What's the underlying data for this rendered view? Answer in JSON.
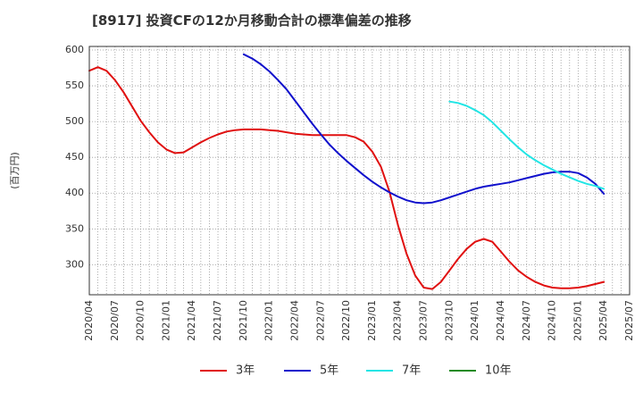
{
  "chart_data": {
    "type": "line",
    "title": "[8917]  投資CFの12か月移動合計の標準偏差の推移",
    "ylabel": "(百万円)",
    "ylim": [
      258,
      605
    ],
    "yticks": [
      300,
      350,
      400,
      450,
      500,
      550,
      600
    ],
    "x_start": "2020-04",
    "x_end": "2025-07",
    "xticks": [
      "2020/04",
      "2020/07",
      "2020/10",
      "2021/01",
      "2021/04",
      "2021/07",
      "2021/10",
      "2022/01",
      "2022/04",
      "2022/07",
      "2022/10",
      "2023/01",
      "2023/04",
      "2023/07",
      "2023/10",
      "2024/01",
      "2024/04",
      "2024/07",
      "2024/10",
      "2025/01",
      "2025/04",
      "2025/07"
    ],
    "grid": true,
    "legend_position": "bottom",
    "series": [
      {
        "name": "3年",
        "color": "#e01010",
        "x": [
          "2020-04",
          "2020-05",
          "2020-06",
          "2020-07",
          "2020-08",
          "2020-09",
          "2020-10",
          "2020-11",
          "2020-12",
          "2021-01",
          "2021-02",
          "2021-03",
          "2021-04",
          "2021-05",
          "2021-06",
          "2021-07",
          "2021-08",
          "2021-09",
          "2021-10",
          "2021-11",
          "2021-12",
          "2022-01",
          "2022-02",
          "2022-03",
          "2022-04",
          "2022-05",
          "2022-06",
          "2022-07",
          "2022-08",
          "2022-09",
          "2022-10",
          "2022-11",
          "2022-12",
          "2023-01",
          "2023-02",
          "2023-03",
          "2023-04",
          "2023-05",
          "2023-06",
          "2023-07",
          "2023-08",
          "2023-09",
          "2023-10",
          "2023-11",
          "2023-12",
          "2024-01",
          "2024-02",
          "2024-03",
          "2024-04",
          "2024-05",
          "2024-06",
          "2024-07",
          "2024-08",
          "2024-09",
          "2024-10",
          "2024-11",
          "2024-12",
          "2025-01",
          "2025-02",
          "2025-03",
          "2025-04"
        ],
        "values": [
          571,
          576,
          571,
          558,
          541,
          521,
          501,
          485,
          471,
          461,
          456,
          457,
          464,
          471,
          477,
          482,
          486,
          488,
          489,
          489,
          489,
          488,
          487,
          485,
          483,
          482,
          481,
          481,
          481,
          481,
          481,
          478,
          472,
          458,
          437,
          402,
          355,
          315,
          285,
          268,
          266,
          276,
          292,
          308,
          322,
          332,
          336,
          332,
          318,
          304,
          292,
          283,
          276,
          271,
          268,
          267,
          267,
          268,
          270,
          273,
          276
        ]
      },
      {
        "name": "5年",
        "color": "#1010cc",
        "x": [
          "2021-10",
          "2021-11",
          "2021-12",
          "2022-01",
          "2022-02",
          "2022-03",
          "2022-04",
          "2022-05",
          "2022-06",
          "2022-07",
          "2022-08",
          "2022-09",
          "2022-10",
          "2022-11",
          "2022-12",
          "2023-01",
          "2023-02",
          "2023-03",
          "2023-04",
          "2023-05",
          "2023-06",
          "2023-07",
          "2023-08",
          "2023-09",
          "2023-10",
          "2023-11",
          "2023-12",
          "2024-01",
          "2024-02",
          "2024-03",
          "2024-04",
          "2024-05",
          "2024-06",
          "2024-07",
          "2024-08",
          "2024-09",
          "2024-10",
          "2024-11",
          "2024-12",
          "2025-01",
          "2025-02",
          "2025-03",
          "2025-04"
        ],
        "values": [
          594,
          588,
          580,
          570,
          558,
          545,
          529,
          513,
          497,
          482,
          468,
          456,
          445,
          435,
          425,
          416,
          408,
          401,
          395,
          390,
          387,
          386,
          387,
          390,
          394,
          398,
          402,
          406,
          409,
          411,
          413,
          415,
          418,
          421,
          424,
          427,
          429,
          430,
          430,
          428,
          422,
          413,
          399
        ]
      },
      {
        "name": "7年",
        "color": "#22e5e5",
        "x": [
          "2023-10",
          "2023-11",
          "2023-12",
          "2024-01",
          "2024-02",
          "2024-03",
          "2024-04",
          "2024-05",
          "2024-06",
          "2024-07",
          "2024-08",
          "2024-09",
          "2024-10",
          "2024-11",
          "2024-12",
          "2025-01",
          "2025-02",
          "2025-03",
          "2025-04"
        ],
        "values": [
          528,
          526,
          522,
          516,
          509,
          499,
          487,
          475,
          464,
          454,
          446,
          439,
          433,
          427,
          422,
          417,
          413,
          410,
          406
        ]
      },
      {
        "name": "10年",
        "color": "#228b22",
        "x": [],
        "values": []
      }
    ]
  }
}
